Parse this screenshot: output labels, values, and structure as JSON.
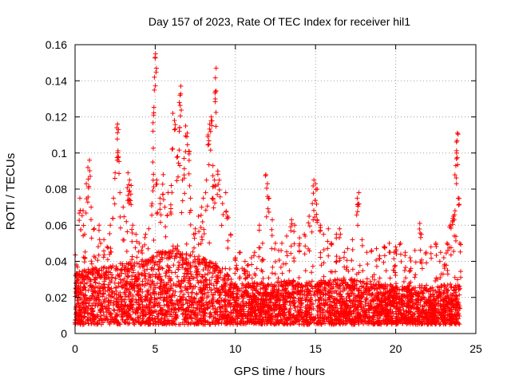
{
  "chart_data": {
    "type": "scatter",
    "title": "Day 157 of 2023, Rate Of TEC Index for receiver hil1",
    "xlabel": "GPS time / hours",
    "ylabel": "ROTI / TECUs",
    "xlim": [
      0,
      25
    ],
    "ylim": [
      0,
      0.16
    ],
    "xticks": [
      0,
      5,
      10,
      15,
      20,
      25
    ],
    "xtick_labels": [
      "0",
      "5",
      "10",
      "15",
      "20",
      "25"
    ],
    "yticks": [
      0,
      0.02,
      0.04,
      0.06,
      0.08,
      0.1,
      0.12,
      0.14,
      0.16
    ],
    "ytick_labels": [
      "0",
      "0.02",
      "0.04",
      "0.06",
      "0.08",
      "0.1",
      "0.12",
      "0.14",
      "0.16"
    ],
    "grid": true,
    "marker": "+",
    "color": "#ff0000",
    "series": [
      {
        "name": "hil1",
        "points": [
          [
            0.1,
            0.038
          ],
          [
            0.3,
            0.075
          ],
          [
            0.5,
            0.068
          ],
          [
            0.6,
            0.055
          ],
          [
            0.7,
            0.083
          ],
          [
            0.8,
            0.092
          ],
          [
            0.9,
            0.096
          ],
          [
            1.0,
            0.07
          ],
          [
            1.2,
            0.058
          ],
          [
            1.5,
            0.06
          ],
          [
            1.6,
            0.05
          ],
          [
            1.8,
            0.052
          ],
          [
            2.0,
            0.048
          ],
          [
            2.2,
            0.06
          ],
          [
            2.4,
            0.075
          ],
          [
            2.5,
            0.089
          ],
          [
            2.6,
            0.114
          ],
          [
            2.65,
            0.116
          ],
          [
            2.7,
            0.098
          ],
          [
            2.8,
            0.078
          ],
          [
            3.0,
            0.07
          ],
          [
            3.2,
            0.062
          ],
          [
            3.3,
            0.089
          ],
          [
            3.4,
            0.085
          ],
          [
            3.5,
            0.082
          ],
          [
            3.6,
            0.06
          ],
          [
            3.8,
            0.055
          ],
          [
            4.0,
            0.05
          ],
          [
            4.2,
            0.048
          ],
          [
            4.4,
            0.055
          ],
          [
            4.6,
            0.058
          ],
          [
            4.8,
            0.072
          ],
          [
            4.85,
            0.095
          ],
          [
            4.9,
            0.121
          ],
          [
            4.95,
            0.142
          ],
          [
            5.0,
            0.153
          ],
          [
            5.02,
            0.155
          ],
          [
            5.1,
            0.085
          ],
          [
            5.3,
            0.075
          ],
          [
            5.5,
            0.088
          ],
          [
            5.6,
            0.07
          ],
          [
            5.8,
            0.078
          ],
          [
            6.0,
            0.082
          ],
          [
            6.1,
            0.122
          ],
          [
            6.2,
            0.118
          ],
          [
            6.4,
            0.098
          ],
          [
            6.5,
            0.112
          ],
          [
            6.55,
            0.132
          ],
          [
            6.6,
            0.137
          ],
          [
            6.7,
            0.085
          ],
          [
            6.8,
            0.097
          ],
          [
            6.9,
            0.115
          ],
          [
            7.0,
            0.111
          ],
          [
            7.1,
            0.101
          ],
          [
            7.2,
            0.075
          ],
          [
            7.4,
            0.055
          ],
          [
            7.5,
            0.058
          ],
          [
            7.7,
            0.065
          ],
          [
            7.9,
            0.07
          ],
          [
            8.0,
            0.075
          ],
          [
            8.2,
            0.085
          ],
          [
            8.3,
            0.11
          ],
          [
            8.4,
            0.116
          ],
          [
            8.5,
            0.12
          ],
          [
            8.6,
            0.093
          ],
          [
            8.7,
            0.085
          ],
          [
            8.75,
            0.134
          ],
          [
            8.8,
            0.147
          ],
          [
            8.9,
            0.09
          ],
          [
            9.0,
            0.085
          ],
          [
            9.2,
            0.072
          ],
          [
            9.4,
            0.078
          ],
          [
            9.5,
            0.065
          ],
          [
            9.7,
            0.055
          ],
          [
            10.0,
            0.042
          ],
          [
            10.3,
            0.045
          ],
          [
            10.6,
            0.04
          ],
          [
            10.8,
            0.038
          ],
          [
            11.0,
            0.042
          ],
          [
            11.2,
            0.045
          ],
          [
            11.5,
            0.06
          ],
          [
            11.7,
            0.05
          ],
          [
            11.9,
            0.088
          ],
          [
            12.0,
            0.083
          ],
          [
            12.1,
            0.075
          ],
          [
            12.3,
            0.063
          ],
          [
            12.5,
            0.05
          ],
          [
            12.7,
            0.046
          ],
          [
            12.9,
            0.05
          ],
          [
            13.2,
            0.054
          ],
          [
            13.5,
            0.063
          ],
          [
            13.7,
            0.06
          ],
          [
            14.0,
            0.053
          ],
          [
            14.3,
            0.055
          ],
          [
            14.6,
            0.065
          ],
          [
            14.8,
            0.072
          ],
          [
            14.9,
            0.085
          ],
          [
            15.0,
            0.083
          ],
          [
            15.1,
            0.08
          ],
          [
            15.3,
            0.06
          ],
          [
            15.5,
            0.055
          ],
          [
            15.8,
            0.058
          ],
          [
            16.0,
            0.05
          ],
          [
            16.3,
            0.055
          ],
          [
            16.5,
            0.058
          ],
          [
            16.8,
            0.045
          ],
          [
            17.0,
            0.047
          ],
          [
            17.3,
            0.052
          ],
          [
            17.6,
            0.075
          ],
          [
            17.7,
            0.078
          ],
          [
            17.9,
            0.052
          ],
          [
            18.2,
            0.045
          ],
          [
            18.5,
            0.046
          ],
          [
            18.8,
            0.047
          ],
          [
            19.0,
            0.043
          ],
          [
            19.3,
            0.048
          ],
          [
            19.6,
            0.05
          ],
          [
            19.9,
            0.045
          ],
          [
            20.0,
            0.048
          ],
          [
            20.3,
            0.05
          ],
          [
            20.6,
            0.045
          ],
          [
            20.9,
            0.042
          ],
          [
            21.2,
            0.046
          ],
          [
            21.5,
            0.061
          ],
          [
            21.6,
            0.055
          ],
          [
            21.9,
            0.045
          ],
          [
            22.2,
            0.048
          ],
          [
            22.5,
            0.05
          ],
          [
            22.8,
            0.045
          ],
          [
            23.0,
            0.042
          ],
          [
            23.2,
            0.05
          ],
          [
            23.4,
            0.06
          ],
          [
            23.6,
            0.065
          ],
          [
            23.7,
            0.068
          ],
          [
            23.75,
            0.093
          ],
          [
            23.8,
            0.1
          ],
          [
            23.85,
            0.111
          ],
          [
            23.9,
            0.075
          ],
          [
            24.0,
            0.05
          ]
        ]
      }
    ],
    "band": {
      "description": "dense cluster of points between these envelope values",
      "x_start": 0.0,
      "x_end": 24.0,
      "lower": 0.005,
      "upper_profile": [
        [
          0,
          0.034
        ],
        [
          2,
          0.038
        ],
        [
          4,
          0.04
        ],
        [
          5,
          0.045
        ],
        [
          6,
          0.048
        ],
        [
          7,
          0.045
        ],
        [
          8,
          0.042
        ],
        [
          9,
          0.038
        ],
        [
          10,
          0.028
        ],
        [
          12,
          0.028
        ],
        [
          14,
          0.03
        ],
        [
          16,
          0.03
        ],
        [
          18,
          0.03
        ],
        [
          20,
          0.026
        ],
        [
          22,
          0.026
        ],
        [
          24,
          0.028
        ]
      ],
      "point_count": 4200
    }
  }
}
